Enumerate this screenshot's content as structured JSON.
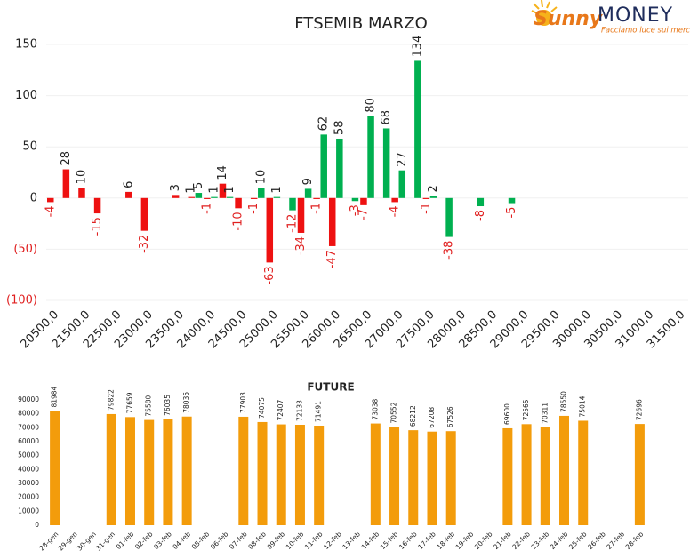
{
  "logo": {
    "brand": "Sunny",
    "brand2": "MONEY",
    "tagline": "Facciamo luce sui mercati"
  },
  "chart_data": [
    {
      "type": "bar",
      "title": "FTSEMIB MARZO",
      "categories": [
        "20500,0",
        null,
        "21500,0",
        null,
        "22500,0",
        null,
        "23000,0",
        null,
        "23500,0",
        null,
        "24000,0",
        null,
        "24500,0",
        null,
        "25000,0",
        null,
        "25500,0",
        null,
        "26000,0",
        null,
        "26500,0",
        null,
        "27000,0",
        null,
        "27500,0",
        null,
        "28000,0",
        null,
        "28500,0",
        null,
        "29000,0",
        null,
        "29500,0",
        null,
        "30000,0",
        null,
        "30500,0",
        null,
        "31000,0",
        null,
        "31500,0"
      ],
      "series": [
        {
          "color": "#ee1111",
          "values": [
            -4,
            28,
            10,
            -15,
            null,
            6,
            -32,
            null,
            3,
            1,
            -1,
            14,
            -10,
            -1,
            -63,
            null,
            -34,
            -1,
            -47,
            null,
            -7,
            null,
            -4,
            null,
            -1,
            null,
            null,
            null,
            null,
            null,
            null,
            null,
            null,
            null,
            null,
            null,
            null,
            null,
            null,
            null,
            null
          ]
        },
        {
          "color": "#00b050",
          "values": [
            null,
            null,
            null,
            null,
            null,
            null,
            null,
            null,
            null,
            5,
            1,
            1,
            null,
            10,
            1,
            -12,
            9,
            62,
            58,
            -3,
            80,
            68,
            27,
            134,
            2,
            -38,
            null,
            -8,
            null,
            -5,
            null,
            null,
            null,
            null,
            null,
            null,
            null,
            null,
            null,
            null,
            null
          ]
        }
      ],
      "ylim": [
        -100,
        150
      ],
      "yticks": [
        {
          "value": -100,
          "label": "(100)"
        },
        {
          "value": -50,
          "label": "(50)"
        },
        0,
        50,
        100,
        150
      ],
      "grid": true
    },
    {
      "type": "bar",
      "title": "FUTURE",
      "categories": [
        "28-gen",
        "29-gen",
        "30-gen",
        "31-gen",
        "01-feb",
        "02-feb",
        "03-feb",
        "04-feb",
        "05-feb",
        "06-feb",
        "07-feb",
        "08-feb",
        "09-feb",
        "10-feb",
        "11-feb",
        "12-feb",
        "13-feb",
        "14-feb",
        "15-feb",
        "16-feb",
        "17-feb",
        "18-feb",
        "19-feb",
        "20-feb",
        "21-feb",
        "22-feb",
        "23-feb",
        "24-feb",
        "25-feb",
        "26-feb",
        "27-feb",
        "28-feb"
      ],
      "values": [
        81984,
        null,
        null,
        79822,
        77659,
        75580,
        76035,
        78035,
        null,
        null,
        77903,
        74075,
        72407,
        72133,
        71491,
        null,
        null,
        73038,
        70552,
        68212,
        67208,
        67526,
        null,
        null,
        69600,
        72565,
        70311,
        78550,
        75014,
        null,
        null,
        72696
      ],
      "color": "#f39c0b",
      "ylim": [
        0,
        90000
      ],
      "yticks": [
        0,
        10000,
        20000,
        30000,
        40000,
        50000,
        60000,
        70000,
        80000,
        90000
      ],
      "grid": false
    }
  ]
}
